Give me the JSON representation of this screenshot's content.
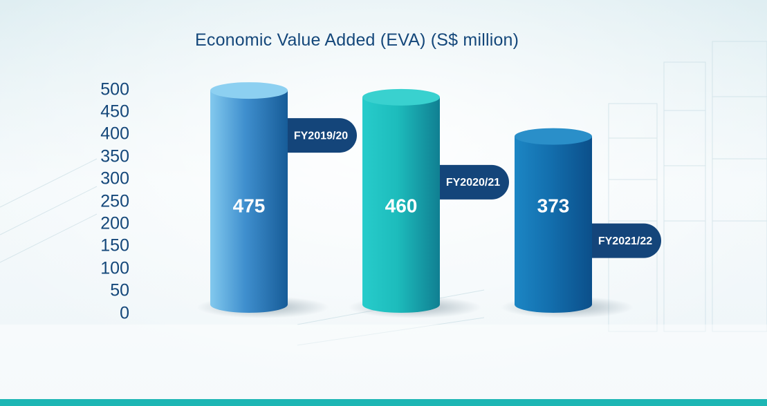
{
  "colors": {
    "bar_1": "#3f8fce",
    "bar_2": "#1dbcbc",
    "bar_3": "#136fae",
    "pill": "#14457a",
    "text_axis": "#14477a",
    "bottom_strip": "#1db6b4"
  },
  "chart_data": {
    "type": "bar",
    "title": "Economic Value Added (EVA) (S$ million)",
    "xlabel": "",
    "ylabel": "",
    "categories": [
      "FY2019/20",
      "FY2020/21",
      "FY2021/22"
    ],
    "values": [
      475,
      460,
      373
    ],
    "value_labels": [
      "475",
      "460",
      "373"
    ],
    "ylim": [
      0,
      500
    ],
    "yticks": [
      "0",
      "50",
      "100",
      "150",
      "200",
      "250",
      "300",
      "350",
      "400",
      "450",
      "500"
    ],
    "grid": false,
    "legend": "none"
  }
}
